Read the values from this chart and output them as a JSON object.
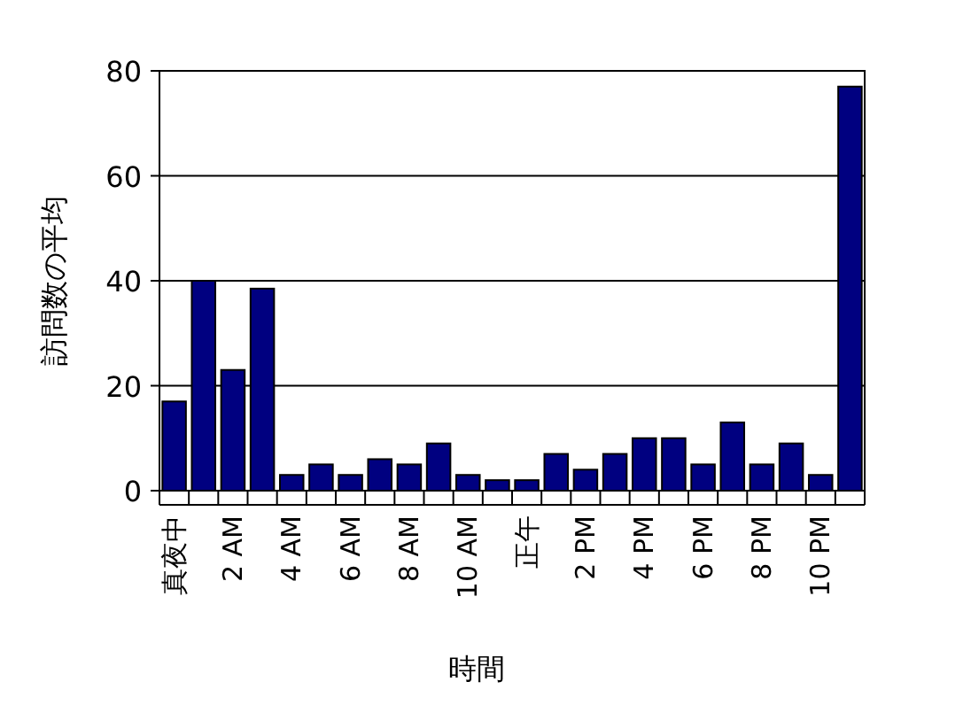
{
  "chart_data": {
    "type": "bar",
    "xlabel": "時間",
    "ylabel": "訪問数の平均",
    "categories": [
      "真夜中",
      null,
      "2 AM",
      null,
      "4 AM",
      null,
      "6 AM",
      null,
      "8 AM",
      null,
      "10 AM",
      null,
      "正午",
      null,
      "2 PM",
      null,
      "4 PM",
      null,
      "6 PM",
      null,
      "8 PM",
      null,
      "10 PM",
      null
    ],
    "series": [
      {
        "color": "#000080",
        "values": [
          17,
          40,
          23,
          38.5,
          3,
          5,
          3,
          6,
          5,
          9,
          3,
          2,
          2,
          7,
          4,
          7,
          10,
          10,
          5,
          13,
          5,
          9,
          3,
          77
        ]
      }
    ],
    "ylim": [
      0,
      80
    ],
    "yticks": [
      0,
      20,
      40,
      60,
      80
    ],
    "grid": "y"
  }
}
